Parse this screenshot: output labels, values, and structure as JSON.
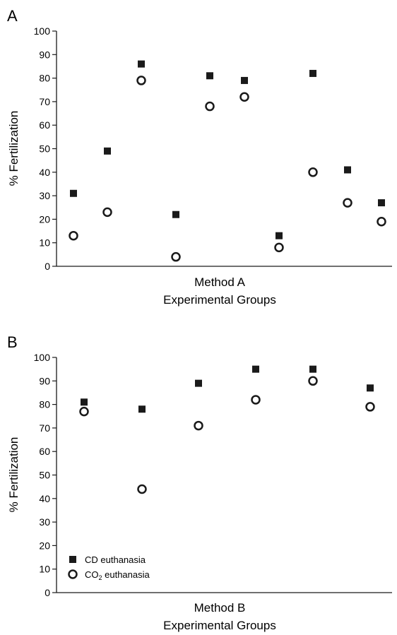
{
  "chart_data": [
    {
      "panel": "A",
      "type": "scatter",
      "xlabel_line1": "Method A",
      "xlabel_line2": "Experimental Groups",
      "ylabel": "% Fertilization",
      "ylim": [
        0,
        100
      ],
      "yticks": [
        "0",
        "10",
        "20",
        "30",
        "40",
        "50",
        "60",
        "70",
        "80",
        "90",
        "100"
      ],
      "grid": false,
      "series": [
        {
          "marker": "filled-square",
          "values": [
            31,
            49,
            86,
            22,
            81,
            79,
            13,
            82,
            41,
            27
          ]
        },
        {
          "marker": "open-circle",
          "values": [
            13,
            23,
            79,
            4,
            68,
            72,
            8,
            40,
            27,
            19
          ]
        }
      ]
    },
    {
      "panel": "B",
      "type": "scatter",
      "xlabel_line1": "Method B",
      "xlabel_line2": "Experimental Groups",
      "ylabel": "% Fertilization",
      "ylim": [
        0,
        100
      ],
      "yticks": [
        "0",
        "10",
        "20",
        "30",
        "40",
        "50",
        "60",
        "70",
        "80",
        "90",
        "100"
      ],
      "grid": false,
      "legend_position": "bottom-left",
      "series": [
        {
          "name": "CD euthanasia",
          "marker": "filled-square",
          "values": [
            81,
            78,
            89,
            95,
            95,
            87
          ]
        },
        {
          "name": "CO",
          "name_subscript": "2",
          "name_suffix": " euthanasia",
          "marker": "open-circle",
          "values": [
            77,
            44,
            71,
            82,
            90,
            79
          ]
        }
      ]
    }
  ],
  "colors": {
    "marker": "#1a1a1a",
    "axis": "#1a1a1a"
  }
}
